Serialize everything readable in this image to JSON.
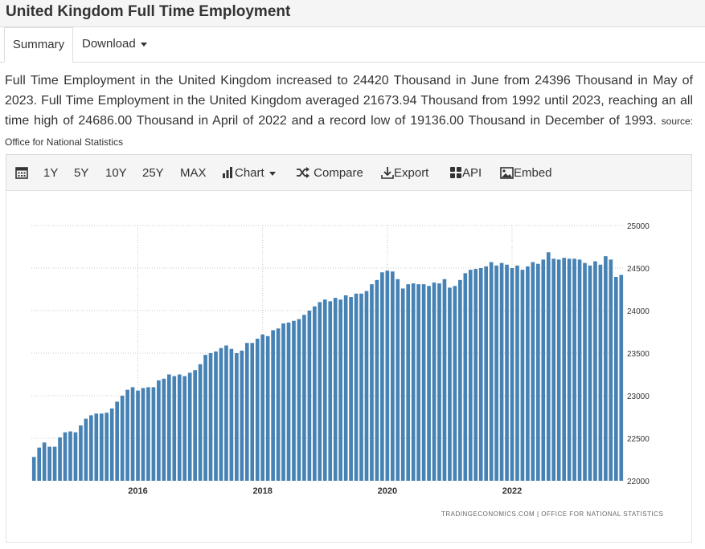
{
  "page": {
    "title": "United Kingdom Full Time Employment"
  },
  "tabs": {
    "summary": "Summary",
    "download": "Download"
  },
  "description": {
    "text": "Full Time Employment in the United Kingdom increased to 24420 Thousand in June from 24396 Thousand in May of 2023. Full Time Employment in the United Kingdom averaged 21673.94 Thousand from 1992 until 2023, reaching an all time high of 24686.00 Thousand in April of 2022 and a record low of 19136.00 Thousand in December of 1993.",
    "source_label": "source:",
    "source_name": "Office for National Statistics"
  },
  "toolbar": {
    "ranges": [
      "1Y",
      "5Y",
      "10Y",
      "25Y",
      "MAX"
    ],
    "chart_label": "Chart",
    "compare_label": "Compare",
    "export_label": "Export",
    "api_label": "API",
    "embed_label": "Embed",
    "icons": [
      "calendar-icon",
      "bar-chart-icon",
      "shuffle-icon",
      "download-icon",
      "grid-icon",
      "image-icon"
    ]
  },
  "chart_credit": "TRADINGECONOMICS.COM  |  OFFICE FOR NATIONAL STATISTICS",
  "chart_data": {
    "type": "bar",
    "color": "#4682b4",
    "ylim": [
      22000,
      25000
    ],
    "yticks": [
      22000,
      22500,
      23000,
      23500,
      24000,
      24500,
      25000
    ],
    "x_tick_labels": [
      {
        "label": "2016",
        "index": 20
      },
      {
        "label": "2018",
        "index": 44
      },
      {
        "label": "2020",
        "index": 68
      },
      {
        "label": "2022",
        "index": 92
      }
    ],
    "values": [
      22280,
      22390,
      22450,
      22400,
      22400,
      22510,
      22570,
      22580,
      22570,
      22650,
      22730,
      22770,
      22790,
      22790,
      22800,
      22850,
      22930,
      23000,
      23070,
      23100,
      23060,
      23090,
      23100,
      23100,
      23180,
      23200,
      23250,
      23230,
      23250,
      23230,
      23270,
      23300,
      23370,
      23480,
      23500,
      23520,
      23560,
      23590,
      23550,
      23500,
      23530,
      23620,
      23620,
      23670,
      23720,
      23700,
      23770,
      23790,
      23850,
      23860,
      23880,
      23900,
      23950,
      24000,
      24050,
      24100,
      24130,
      24110,
      24150,
      24130,
      24180,
      24160,
      24200,
      24200,
      24230,
      24310,
      24360,
      24450,
      24470,
      24460,
      24370,
      24260,
      24310,
      24320,
      24310,
      24310,
      24290,
      24330,
      24320,
      24370,
      24270,
      24290,
      24360,
      24440,
      24480,
      24490,
      24500,
      24520,
      24570,
      24530,
      24560,
      24540,
      24500,
      24530,
      24480,
      24520,
      24570,
      24550,
      24600,
      24686,
      24610,
      24600,
      24620,
      24610,
      24610,
      24600,
      24560,
      24530,
      24580,
      24540,
      24640,
      24600,
      24396,
      24420
    ]
  }
}
